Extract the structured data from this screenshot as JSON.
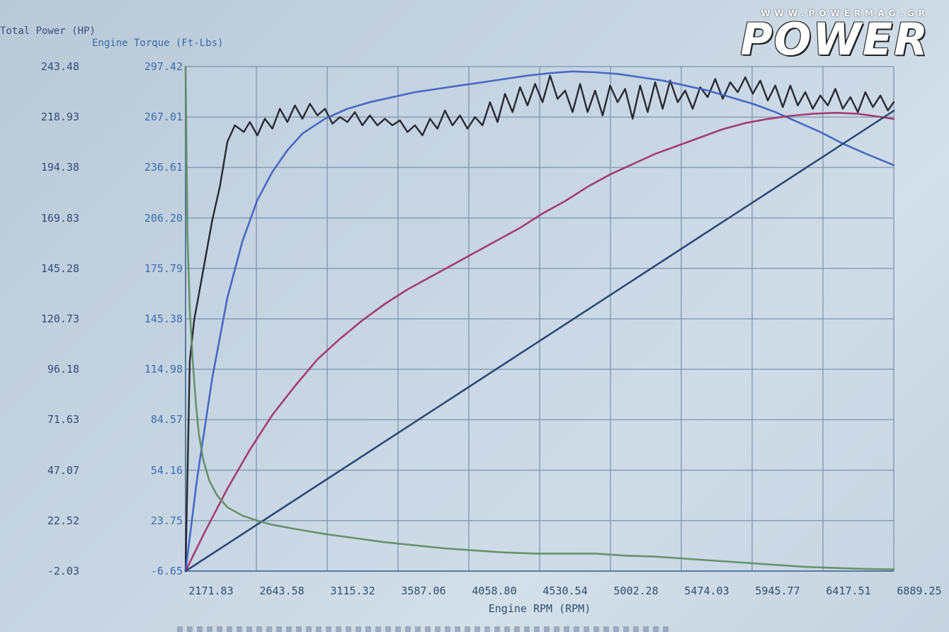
{
  "branding": {
    "url": "WWW.POWERMAG.GR",
    "wordmark": "POWER"
  },
  "chart_data": {
    "type": "line",
    "xlabel": "Engine RPM (RPM)",
    "ylabel_left_outer": "Total Power (HP)",
    "ylabel_left_inner": "Engine Torque (Ft-Lbs)",
    "xlim": [
      2171.83,
      6889.25
    ],
    "ylim_power": [
      -2.03,
      243.48
    ],
    "ylim_torque": [
      -6.65,
      297.42
    ],
    "x_ticks": [
      "2171.83",
      "2643.58",
      "3115.32",
      "3587.06",
      "4058.80",
      "4530.54",
      "5002.28",
      "5474.03",
      "5945.77",
      "6417.51",
      "6889.25"
    ],
    "power_ticks": [
      "243.48",
      "218.93",
      "194.38",
      "169.83",
      "145.28",
      "120.73",
      "96.18",
      "71.63",
      "47.07",
      "22.52",
      "-2.03"
    ],
    "torque_ticks": [
      "297.42",
      "267.01",
      "236.61",
      "206.20",
      "175.79",
      "145.38",
      "114.98",
      "84.57",
      "54.16",
      "23.75",
      "-6.65"
    ],
    "grid": true,
    "colors": {
      "black": "#1a1a24",
      "blue": "#3d5fc0",
      "red": "#a0306a",
      "navy": "#1d3f6b",
      "green": "#5e8c62",
      "grid": "#7a8fa8"
    },
    "series": [
      {
        "color": "black",
        "axis": "torque",
        "x": [
          2171.83,
          2200,
          2230,
          2260,
          2300,
          2350,
          2400,
          2450,
          2500,
          2560,
          2600,
          2650,
          2700,
          2750,
          2800,
          2850,
          2900,
          2950,
          3000,
          3050,
          3100,
          3150,
          3200,
          3250,
          3300,
          3350,
          3400,
          3450,
          3500,
          3550,
          3600,
          3650,
          3700,
          3750,
          3800,
          3850,
          3900,
          3950,
          4000,
          4050,
          4100,
          4150,
          4200,
          4250,
          4300,
          4350,
          4400,
          4450,
          4500,
          4550,
          4600,
          4650,
          4700,
          4750,
          4800,
          4850,
          4900,
          4950,
          5000,
          5050,
          5100,
          5150,
          5200,
          5250,
          5300,
          5350,
          5400,
          5450,
          5500,
          5550,
          5600,
          5650,
          5700,
          5750,
          5800,
          5850,
          5900,
          5950,
          6000,
          6050,
          6100,
          6150,
          6200,
          6250,
          6300,
          6350,
          6400,
          6450,
          6500,
          6550,
          6600,
          6650,
          6700,
          6750,
          6800,
          6850,
          6889
        ],
        "values": [
          -6.65,
          120,
          145,
          160,
          180,
          205,
          225,
          252,
          262,
          258,
          264,
          256,
          266,
          260,
          272,
          264,
          274,
          266,
          275,
          268,
          272,
          263,
          267,
          264,
          270,
          262,
          268,
          262,
          266,
          262,
          265,
          258,
          262,
          256,
          266,
          260,
          271,
          262,
          268,
          260,
          267,
          262,
          276,
          264,
          281,
          270,
          285,
          274,
          287,
          276,
          292,
          278,
          283,
          270,
          287,
          270,
          283,
          268,
          286,
          276,
          284,
          266,
          286,
          270,
          288,
          272,
          289,
          276,
          283,
          272,
          285,
          279,
          290,
          278,
          288,
          282,
          291,
          281,
          289,
          277,
          286,
          273,
          286,
          274,
          282,
          272,
          280,
          274,
          284,
          272,
          279,
          270,
          282,
          273,
          280,
          271,
          276
        ]
      },
      {
        "color": "blue",
        "axis": "torque",
        "x": [
          2171.83,
          2250,
          2350,
          2450,
          2550,
          2650,
          2750,
          2850,
          2950,
          3100,
          3250,
          3400,
          3550,
          3700,
          3850,
          4000,
          4150,
          4300,
          4450,
          4600,
          4750,
          4900,
          5050,
          5200,
          5350,
          5500,
          5650,
          5800,
          5950,
          6100,
          6250,
          6400,
          6550,
          6700,
          6889
        ],
        "values": [
          -6.65,
          50,
          110,
          158,
          192,
          217,
          234,
          247,
          257,
          266,
          272,
          276,
          279,
          282,
          284,
          286,
          288,
          290,
          292,
          293.5,
          294.5,
          294,
          293,
          291,
          289,
          286,
          283,
          279,
          275,
          270,
          264,
          258,
          251,
          245,
          238
        ]
      },
      {
        "color": "red",
        "axis": "power",
        "x": [
          2171.83,
          2300,
          2450,
          2600,
          2750,
          2900,
          3050,
          3200,
          3350,
          3500,
          3650,
          3800,
          3950,
          4100,
          4250,
          4400,
          4550,
          4700,
          4850,
          5000,
          5150,
          5300,
          5450,
          5600,
          5750,
          5900,
          6050,
          6200,
          6350,
          6500,
          6650,
          6800,
          6889
        ],
        "values": [
          -2.03,
          17,
          38,
          57,
          74,
          88,
          101,
          111,
          120,
          128,
          135,
          141,
          147,
          153,
          159,
          165,
          172,
          178,
          185,
          191,
          196,
          201,
          205,
          209,
          213,
          216,
          218,
          219.5,
          220.5,
          221,
          220.5,
          219,
          218
        ]
      },
      {
        "color": "navy",
        "axis": "power",
        "x": [
          2171.83,
          6889.25
        ],
        "values": [
          -2.03,
          222
        ]
      },
      {
        "color": "green",
        "axis": "power",
        "x": [
          2171.83,
          2185,
          2200,
          2220,
          2240,
          2260,
          2290,
          2330,
          2380,
          2450,
          2550,
          2650,
          2750,
          2900,
          3100,
          3300,
          3500,
          3700,
          3900,
          4100,
          4300,
          4500,
          4700,
          4900,
          5100,
          5300,
          5500,
          5700,
          5900,
          6100,
          6300,
          6500,
          6700,
          6889
        ],
        "values": [
          243.48,
          160,
          125,
          100,
          80,
          65,
          52,
          42,
          35,
          29,
          25,
          22.5,
          20.5,
          18.5,
          16,
          14,
          12,
          10.5,
          9,
          8,
          7,
          6.5,
          6.5,
          6.5,
          5.5,
          5,
          4,
          3,
          2,
          1,
          0,
          -0.5,
          -1,
          -1.2
        ]
      }
    ]
  }
}
